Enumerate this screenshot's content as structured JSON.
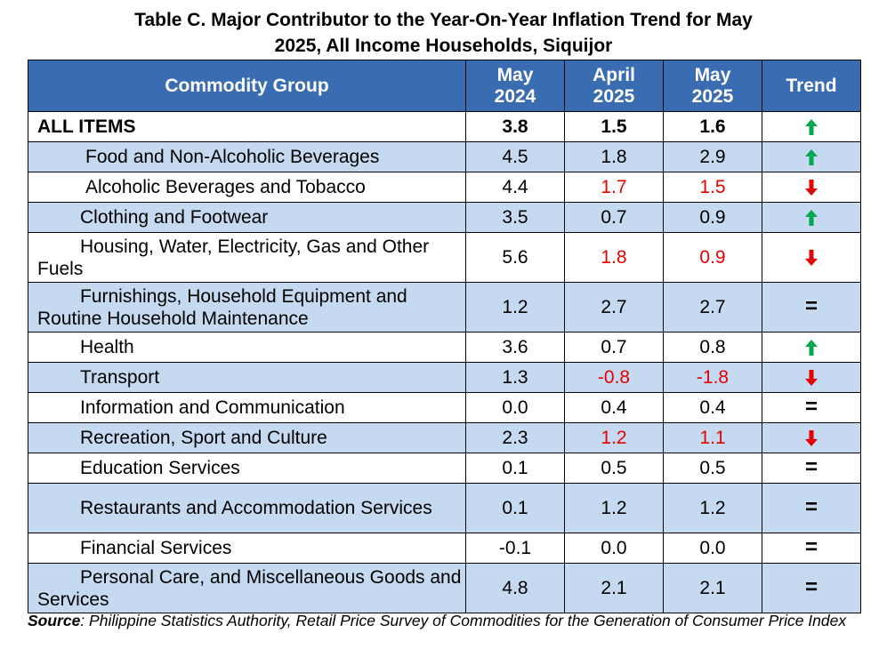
{
  "title_line1": "Table C. Major Contributor to the Year-On-Year Inflation Trend for May",
  "title_line2": "2025, All Income Households, Siquijor",
  "headers": {
    "group": "Commodity Group",
    "c1_l1": "May",
    "c1_l2": "2024",
    "c2_l1": "April",
    "c2_l2": "2025",
    "c3_l1": "May",
    "c3_l2": "2025",
    "trend": "Trend"
  },
  "rows": [
    {
      "name": "ALL ITEMS",
      "v1": "3.8",
      "v2": "1.5",
      "v3": "1.6",
      "trend": "up-arrow-icon"
    },
    {
      "name": "Food and Non-Alcoholic Beverages",
      "v1": "4.5",
      "v2": "1.8",
      "v3": "2.9",
      "trend": "up-arrow-icon"
    },
    {
      "name": "Alcoholic Beverages and Tobacco",
      "v1": "4.4",
      "v2": "1.7",
      "v3": "1.5",
      "trend": "down-arrow-icon"
    },
    {
      "name": "Clothing and Footwear",
      "v1": "3.5",
      "v2": "0.7",
      "v3": "0.9",
      "trend": "up-arrow-icon"
    },
    {
      "name": "Housing, Water, Electricity, Gas and Other Fuels",
      "v1": "5.6",
      "v2": "1.8",
      "v3": "0.9",
      "trend": "down-arrow-icon"
    },
    {
      "name": "Furnishings, Household Equipment and Routine Household Maintenance",
      "v1": "1.2",
      "v2": "2.7",
      "v3": "2.7",
      "trend": "="
    },
    {
      "name": "Health",
      "v1": "3.6",
      "v2": "0.7",
      "v3": "0.8",
      "trend": "up-arrow-icon"
    },
    {
      "name": "Transport",
      "v1": "1.3",
      "v2": "-0.8",
      "v3": "-1.8",
      "trend": "down-arrow-icon"
    },
    {
      "name": "Information and Communication",
      "v1": "0.0",
      "v2": "0.4",
      "v3": "0.4",
      "trend": "="
    },
    {
      "name": "Recreation, Sport and Culture",
      "v1": "2.3",
      "v2": "1.2",
      "v3": "1.1",
      "trend": "down-arrow-icon"
    },
    {
      "name": "Education Services",
      "v1": "0.1",
      "v2": "0.5",
      "v3": "0.5",
      "trend": "="
    },
    {
      "name": "Restaurants and Accommodation Services",
      "v1": "0.1",
      "v2": "1.2",
      "v3": "1.2",
      "trend": "="
    },
    {
      "name": "Financial Services",
      "v1": "-0.1",
      "v2": "0.0",
      "v3": "0.0",
      "trend": "="
    },
    {
      "name": "Personal Care, and Miscellaneous Goods and Services",
      "v1": "4.8",
      "v2": "2.1",
      "v3": "2.1",
      "trend": "="
    }
  ],
  "source_label": "Source",
  "source_text": ": Philippine Statistics Authority, Retail Price Survey of Commodities for the Generation of Consumer Price Index",
  "colors": {
    "header_bg": "#3a6cb1",
    "shaded_row": "#c5d9f0",
    "up_arrow": "#00a651",
    "down_arrow": "#e60000",
    "negative_value": "#e60000"
  }
}
